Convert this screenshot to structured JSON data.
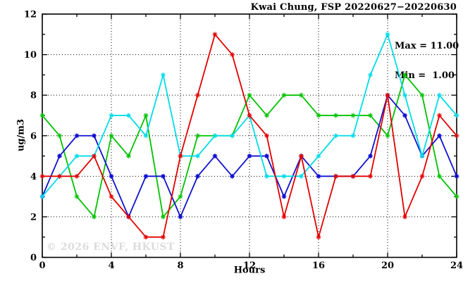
{
  "header": {
    "title": "Kwai Chung, FSP 20220627−20220630"
  },
  "annotation": {
    "max_line": "Max = 11.00",
    "min_line": "Min =  1.00"
  },
  "watermark": "© 2026 ENVF, HKUST",
  "chart_data": {
    "type": "line",
    "title": "Kwai Chung, FSP 20220627−20220630",
    "xlabel": "Hours",
    "ylabel": "ug/m3",
    "xlim": [
      0,
      24
    ],
    "ylim": [
      0,
      12
    ],
    "x_major_ticks": [
      0,
      4,
      8,
      12,
      16,
      20,
      24
    ],
    "x_minor_ticks": [
      2,
      6,
      10,
      14,
      18,
      22
    ],
    "y_major_ticks": [
      0,
      2,
      4,
      6,
      8,
      10,
      12
    ],
    "y_minor_ticks": [
      1,
      3,
      5,
      7,
      9,
      11
    ],
    "grid": {
      "x": [
        4,
        8,
        12,
        16,
        20
      ],
      "y": [
        2,
        4,
        6,
        8,
        10
      ]
    },
    "legend_position": "none",
    "stats": {
      "max": 11.0,
      "min": 1.0
    },
    "x": [
      0,
      1,
      2,
      3,
      4,
      5,
      6,
      7,
      8,
      9,
      10,
      11,
      12,
      13,
      14,
      15,
      16,
      17,
      18,
      19,
      20,
      21,
      22,
      23,
      24
    ],
    "series": [
      {
        "name": "green",
        "color": "#00c300",
        "marker": "asterisk",
        "values": [
          7,
          6,
          3,
          2,
          6,
          5,
          7,
          2,
          3,
          6,
          6,
          6,
          8,
          7,
          8,
          8,
          7,
          7,
          7,
          7,
          6,
          9,
          8,
          4,
          3
        ]
      },
      {
        "name": "blue",
        "color": "#1010d0",
        "marker": "square-asterisk",
        "values": [
          3,
          5,
          6,
          6,
          4,
          2,
          4,
          4,
          2,
          4,
          5,
          4,
          5,
          5,
          3,
          5,
          4,
          4,
          4,
          5,
          8,
          7,
          5,
          6,
          4
        ]
      },
      {
        "name": "cyan",
        "color": "#00dce8",
        "marker": "asterisk",
        "values": [
          3,
          4,
          5,
          5,
          7,
          7,
          6,
          9,
          5,
          5,
          6,
          6,
          7,
          4,
          4,
          4,
          5,
          6,
          6,
          9,
          11,
          8,
          5,
          8,
          7
        ]
      },
      {
        "name": "red",
        "color": "#e30000",
        "marker": "asterisk",
        "values": [
          4,
          4,
          4,
          5,
          3,
          2,
          1,
          1,
          5,
          8,
          11,
          10,
          7,
          6,
          2,
          5,
          1,
          4,
          4,
          4,
          8,
          2,
          4,
          7,
          6
        ]
      }
    ]
  }
}
